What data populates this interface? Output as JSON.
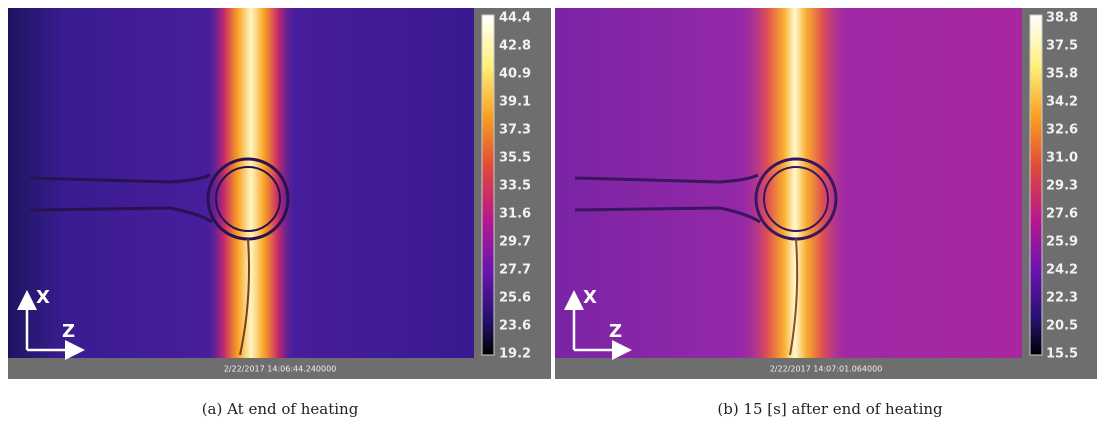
{
  "panels": [
    {
      "colorbar_labels": [
        "44.4",
        "42.8",
        "40.9",
        "39.1",
        "37.3",
        "35.5",
        "33.5",
        "31.6",
        "29.7",
        "27.7",
        "25.6",
        "23.6",
        "19.2"
      ],
      "timestamp": "2/22/2017 14:06:44.240000",
      "axis_x": "X",
      "axis_z": "Z",
      "caption": "(a) At end of heating"
    },
    {
      "colorbar_labels": [
        "38.8",
        "37.5",
        "35.8",
        "34.2",
        "32.6",
        "31.0",
        "29.3",
        "27.6",
        "25.9",
        "24.2",
        "22.3",
        "20.5",
        "15.5"
      ],
      "timestamp": "2/22/2017 14:07:01.064000",
      "axis_x": "X",
      "axis_z": "Z",
      "caption": "(b) 15 [s] after end of heating"
    }
  ]
}
